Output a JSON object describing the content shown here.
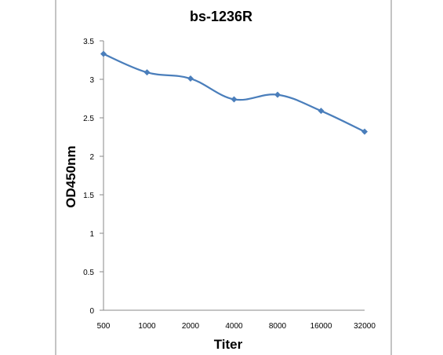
{
  "chart_data": {
    "type": "line",
    "title": "bs-1236R",
    "xlabel": "Titer",
    "ylabel": "OD450nm",
    "categories": [
      "500",
      "1000",
      "2000",
      "4000",
      "8000",
      "16000",
      "32000"
    ],
    "series": [
      {
        "values": [
          3.33,
          3.09,
          3.01,
          2.74,
          2.8,
          2.59,
          2.32
        ]
      }
    ],
    "ylim": [
      0,
      3.5
    ],
    "yticks": [
      "0",
      "0.5",
      "1",
      "1.5",
      "2",
      "2.5",
      "3",
      "3.5"
    ],
    "grid": false,
    "legend": "none",
    "smooth": true,
    "marker": "diamond",
    "series_color": "#4a7ebb"
  }
}
